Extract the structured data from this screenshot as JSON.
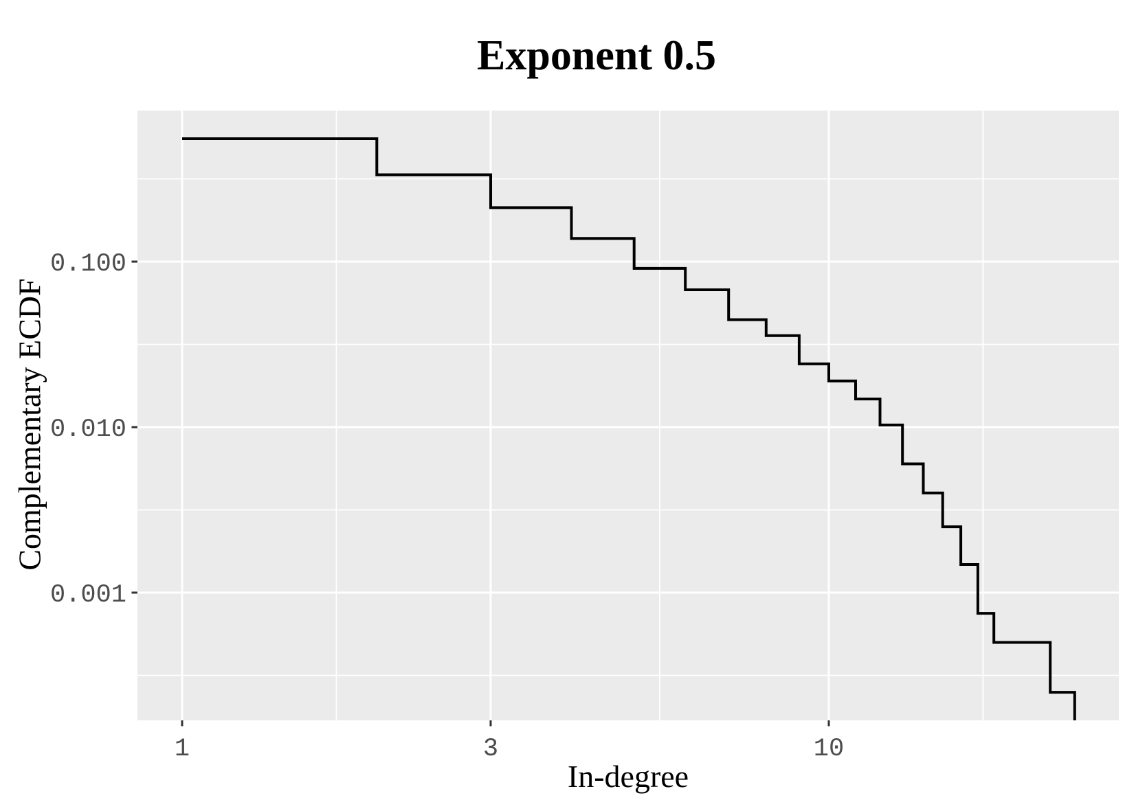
{
  "title": "Exponent 0.5",
  "colors": {
    "background": "#FFFFFF",
    "panel_background": "#EBEBEB",
    "gridline": "#FFFFFF",
    "curve": "#000000",
    "tick_mark": "#333333",
    "tick_label": "#4D4D4D",
    "title_text": "#000000"
  },
  "chart_data": {
    "type": "line",
    "subtype": "complementary-ecdf-step",
    "title": "Exponent 0.5",
    "xlabel": "In-degree",
    "ylabel": "Complementary ECDF",
    "x_scale": "log10",
    "y_scale": "log10",
    "xlim": [
      0.85,
      28.2
    ],
    "ylim": [
      0.00017,
      0.83
    ],
    "grid": "major-and-minor",
    "legend": "none",
    "x_ticks": {
      "values": [
        1,
        3,
        10
      ],
      "labels": [
        "1",
        "3",
        "10"
      ]
    },
    "y_ticks": {
      "values": [
        0.1,
        0.01,
        0.001
      ],
      "labels": [
        "0.100",
        "0.010",
        "0.001"
      ]
    },
    "x_minor_breaks": [
      1.7320508,
      5.4772256,
      17.3205081
    ],
    "y_minor_breaks": [
      0.31622777,
      0.031622777,
      0.0031622777,
      0.00031622777
    ],
    "points": [
      {
        "x": 1,
        "ccdf": 0.553
      },
      {
        "x": 2,
        "ccdf": 0.335
      },
      {
        "x": 3,
        "ccdf": 0.212
      },
      {
        "x": 4,
        "ccdf": 0.138
      },
      {
        "x": 5,
        "ccdf": 0.091
      },
      {
        "x": 6,
        "ccdf": 0.0676
      },
      {
        "x": 7,
        "ccdf": 0.0446
      },
      {
        "x": 8,
        "ccdf": 0.0357
      },
      {
        "x": 9,
        "ccdf": 0.0241
      },
      {
        "x": 10,
        "ccdf": 0.019
      },
      {
        "x": 11,
        "ccdf": 0.0148
      },
      {
        "x": 12,
        "ccdf": 0.0103
      },
      {
        "x": 13,
        "ccdf": 0.006
      },
      {
        "x": 14,
        "ccdf": 0.004
      },
      {
        "x": 15,
        "ccdf": 0.0025
      },
      {
        "x": 16,
        "ccdf": 0.00148
      },
      {
        "x": 17,
        "ccdf": 0.00075
      },
      {
        "x": 18,
        "ccdf": 0.0005
      },
      {
        "x": 22,
        "ccdf": 0.00025
      },
      {
        "x": 24,
        "ccdf": 0
      }
    ]
  }
}
